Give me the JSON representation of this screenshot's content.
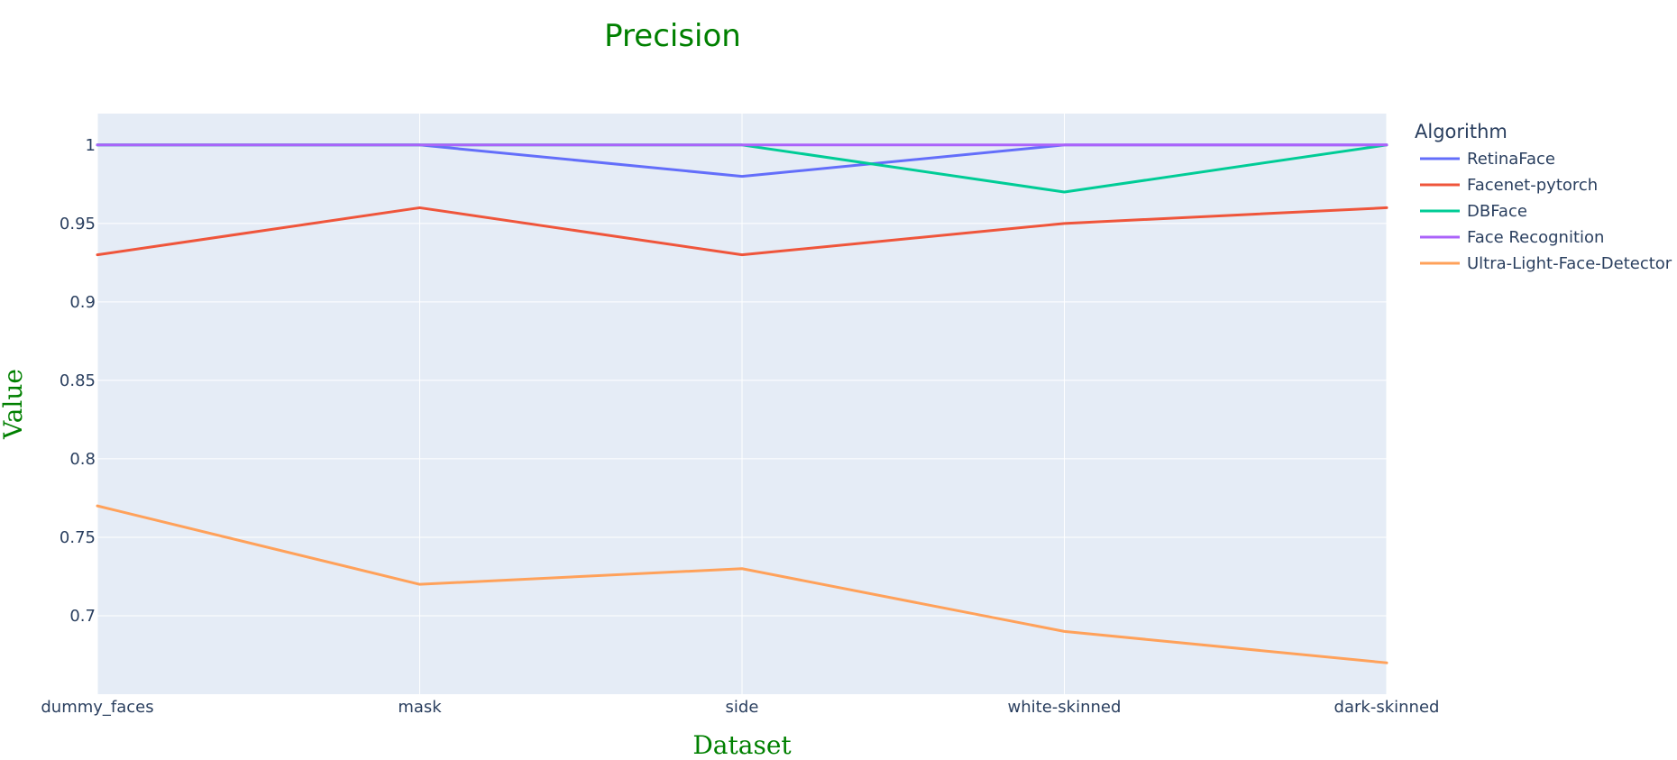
{
  "chart_data": {
    "type": "line",
    "title": "Precision",
    "xlabel": "Dataset",
    "ylabel": "Value",
    "categories": [
      "dummy_faces",
      "mask",
      "side",
      "white-skinned",
      "dark-skinned"
    ],
    "ylim": [
      0.65,
      1.02
    ],
    "yticks": [
      0.7,
      0.75,
      0.8,
      0.85,
      0.9,
      0.95,
      1
    ],
    "ytick_labels": [
      "0.7",
      "0.75",
      "0.8",
      "0.85",
      "0.9",
      "0.95",
      "1"
    ],
    "grid": true,
    "legend": {
      "title": "Algorithm",
      "placement": "top-right outside"
    },
    "series": [
      {
        "name": "RetinaFace",
        "color": "#636efa",
        "values": [
          1.0,
          1.0,
          0.98,
          1.0,
          1.0
        ]
      },
      {
        "name": "Facenet-pytorch",
        "color": "#ef553b",
        "values": [
          0.93,
          0.96,
          0.93,
          0.95,
          0.96
        ]
      },
      {
        "name": "DBFace",
        "color": "#00cc96",
        "values": [
          1.0,
          1.0,
          1.0,
          0.97,
          1.0
        ]
      },
      {
        "name": "Face Recognition",
        "color": "#ab63fa",
        "values": [
          1.0,
          1.0,
          1.0,
          1.0,
          1.0
        ]
      },
      {
        "name": "Ultra-Light-Face-Detector",
        "color": "#ffa15a",
        "values": [
          0.77,
          0.72,
          0.73,
          0.69,
          0.67
        ]
      }
    ]
  }
}
